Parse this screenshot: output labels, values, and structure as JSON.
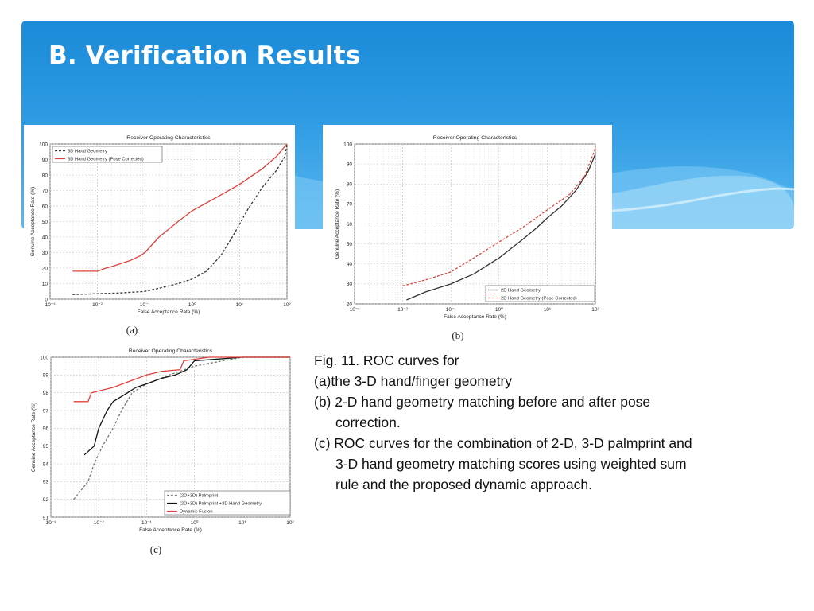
{
  "slide": {
    "title": "B. Verification Results",
    "caption": {
      "lines": [
        "Fig. 11. ROC curves for",
        "(a)the 3-D hand/finger geometry",
        "(b) 2-D hand geometry matching before and after pose",
        "correction.",
        "(c) ROC curves for the combination of 2-D, 3-D palmprint and",
        "3-D hand geometry matching scores using weighted sum",
        "rule and the proposed dynamic approach."
      ]
    }
  },
  "chart_data": [
    {
      "type": "line",
      "panel_label": "(a)",
      "title": "Receiver Operating Characteristics",
      "xlabel": "False Acceptance Rate (%)",
      "ylabel": "Genuine Acceptance Rate (%)",
      "xscale": "log",
      "xlim": [
        0.001,
        100
      ],
      "ylim": [
        0,
        100
      ],
      "xtick_labels": [
        "10⁻³",
        "10⁻²",
        "10⁻¹",
        "10⁰",
        "10¹",
        "10²"
      ],
      "yticks": [
        0,
        10,
        20,
        30,
        40,
        50,
        60,
        70,
        80,
        90,
        100
      ],
      "grid": true,
      "legend_position": "top-left",
      "series": [
        {
          "name": "3D Hand Geometry",
          "color": "#333333",
          "dash": true,
          "points": [
            [
              0.003,
              3
            ],
            [
              0.01,
              3.5
            ],
            [
              0.03,
              4
            ],
            [
              0.1,
              5
            ],
            [
              0.2,
              7
            ],
            [
              0.5,
              10
            ],
            [
              1,
              13
            ],
            [
              2,
              18
            ],
            [
              4,
              28
            ],
            [
              7,
              40
            ],
            [
              15,
              58
            ],
            [
              30,
              72
            ],
            [
              60,
              83
            ],
            [
              90,
              92
            ],
            [
              100,
              100
            ]
          ]
        },
        {
          "name": "3D Hand Geometry (Pose Corrected)",
          "color": "#e0403a",
          "dash": false,
          "points": [
            [
              0.003,
              18
            ],
            [
              0.01,
              18
            ],
            [
              0.015,
              20
            ],
            [
              0.02,
              21
            ],
            [
              0.05,
              25
            ],
            [
              0.08,
              28
            ],
            [
              0.1,
              30
            ],
            [
              0.2,
              40
            ],
            [
              0.5,
              50
            ],
            [
              1,
              57
            ],
            [
              3,
              65
            ],
            [
              10,
              74
            ],
            [
              30,
              84
            ],
            [
              60,
              92
            ],
            [
              100,
              100
            ]
          ]
        }
      ]
    },
    {
      "type": "line",
      "panel_label": "(b)",
      "title": "Receiver Operating Characteristics",
      "xlabel": "False Acceptance Rate (%)",
      "ylabel": "Genuine Acceptance Rate (%)",
      "xscale": "log",
      "xlim": [
        0.001,
        100
      ],
      "ylim": [
        20,
        100
      ],
      "xtick_labels": [
        "10⁻³",
        "10⁻²",
        "10⁻¹",
        "10⁰",
        "10¹",
        "10²"
      ],
      "yticks": [
        20,
        30,
        40,
        50,
        60,
        70,
        80,
        90,
        100
      ],
      "grid": true,
      "legend_position": "bottom-right",
      "series": [
        {
          "name": "2D Hand Geometry",
          "color": "#333333",
          "dash": false,
          "points": [
            [
              0.012,
              22
            ],
            [
              0.03,
              26
            ],
            [
              0.1,
              30
            ],
            [
              0.3,
              35
            ],
            [
              1,
              43
            ],
            [
              3,
              52
            ],
            [
              6,
              58
            ],
            [
              10,
              63
            ],
            [
              20,
              69
            ],
            [
              40,
              77
            ],
            [
              70,
              86
            ],
            [
              100,
              95
            ]
          ]
        },
        {
          "name": "2D Hand Geometry (Pose Corrected)",
          "color": "#e0403a",
          "dash": true,
          "points": [
            [
              0.01,
              29
            ],
            [
              0.03,
              32
            ],
            [
              0.1,
              36
            ],
            [
              0.3,
              43
            ],
            [
              1,
              51
            ],
            [
              3,
              58
            ],
            [
              10,
              67
            ],
            [
              30,
              75
            ],
            [
              60,
              84
            ],
            [
              100,
              98
            ]
          ]
        }
      ]
    },
    {
      "type": "line",
      "panel_label": "(c)",
      "title": "Receiver Operating Characteristics",
      "xlabel": "False Acceptance Rate (%)",
      "ylabel": "Genuine Acceptance Rate (%)",
      "xscale": "log",
      "xlim": [
        0.001,
        100
      ],
      "ylim": [
        91,
        100
      ],
      "xtick_labels": [
        "10⁻³",
        "10⁻²",
        "10⁻¹",
        "10⁰",
        "10¹",
        "10²"
      ],
      "yticks": [
        91,
        92,
        93,
        94,
        95,
        96,
        97,
        98,
        99,
        100
      ],
      "grid": true,
      "legend_position": "bottom-right",
      "series": [
        {
          "name": "(2D+3D) Palmprint",
          "color": "#777777",
          "dash": true,
          "points": [
            [
              0.003,
              92
            ],
            [
              0.006,
              93
            ],
            [
              0.008,
              94
            ],
            [
              0.012,
              95
            ],
            [
              0.02,
              96
            ],
            [
              0.03,
              97
            ],
            [
              0.05,
              98
            ],
            [
              0.1,
              98.5
            ],
            [
              0.3,
              99
            ],
            [
              1,
              99.5
            ],
            [
              10,
              100
            ],
            [
              100,
              100
            ]
          ]
        },
        {
          "name": "(2D+3D) Palmprint +3D Hand Geometry",
          "color": "#111111",
          "dash": false,
          "points": [
            [
              0.005,
              94.5
            ],
            [
              0.008,
              95
            ],
            [
              0.01,
              96
            ],
            [
              0.015,
              97
            ],
            [
              0.02,
              97.5
            ],
            [
              0.04,
              98
            ],
            [
              0.06,
              98.3
            ],
            [
              0.1,
              98.5
            ],
            [
              0.2,
              98.8
            ],
            [
              0.4,
              99
            ],
            [
              0.7,
              99.3
            ],
            [
              1,
              99.8
            ],
            [
              10,
              100
            ],
            [
              100,
              100
            ]
          ]
        },
        {
          "name": "Dynamic Fusion",
          "color": "#e0403a",
          "dash": false,
          "points": [
            [
              0.003,
              97.5
            ],
            [
              0.006,
              97.5
            ],
            [
              0.007,
              98
            ],
            [
              0.02,
              98.3
            ],
            [
              0.05,
              98.7
            ],
            [
              0.1,
              99
            ],
            [
              0.2,
              99.2
            ],
            [
              0.5,
              99.3
            ],
            [
              0.6,
              99.8
            ],
            [
              2,
              100
            ],
            [
              100,
              100
            ]
          ]
        }
      ]
    }
  ]
}
